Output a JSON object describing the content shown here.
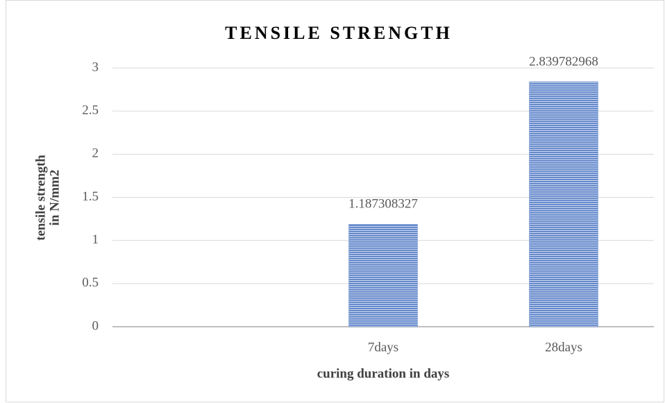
{
  "chart_data": {
    "type": "bar",
    "title": "TENSILE STRENGTH",
    "categories": [
      null,
      "7days",
      "28days"
    ],
    "values": [
      null,
      1.187308327,
      2.839782968
    ],
    "color": "#4f79c4",
    "ylim": [
      0,
      3
    ],
    "yticks": [
      0,
      0.5,
      1,
      1.5,
      2,
      2.5,
      3
    ],
    "grid": true,
    "y_label": [
      "tensile strength",
      "in N/mm2"
    ],
    "x_label": "curing duration in days"
  }
}
